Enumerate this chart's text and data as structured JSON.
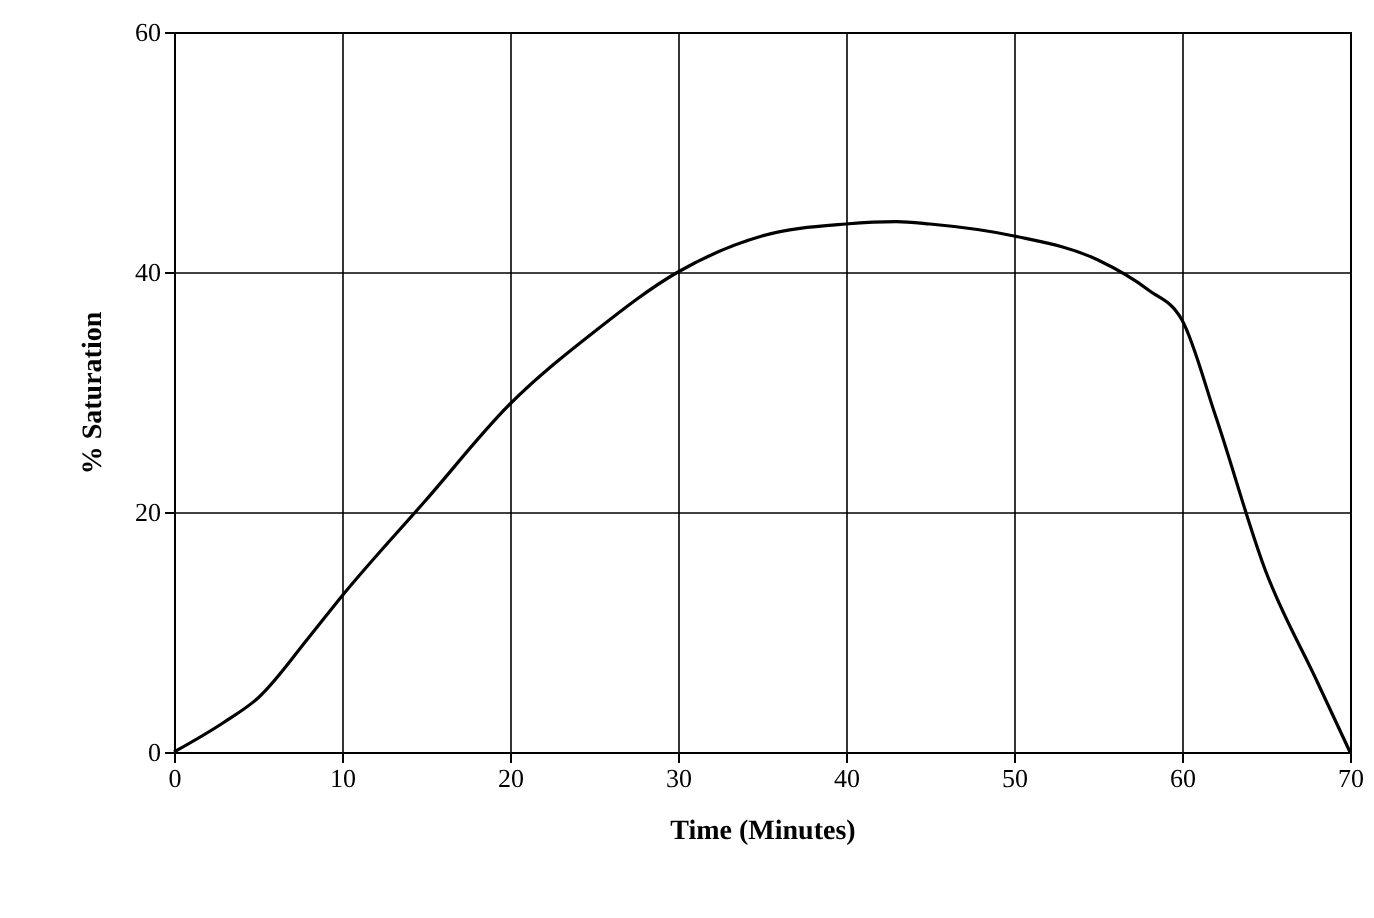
{
  "chart_data": {
    "type": "line",
    "xlabel": "Time (Minutes)",
    "ylabel": "% Saturation",
    "x": [
      0,
      3,
      5,
      8,
      10,
      15,
      20,
      25,
      30,
      35,
      40,
      43,
      45,
      50,
      55,
      58,
      60,
      62,
      65,
      68,
      70
    ],
    "series": [
      {
        "color": "#000000",
        "values": [
          0,
          2.5,
          4.5,
          9.5,
          13,
          21,
          29,
          35,
          40,
          43,
          44,
          44.2,
          44,
          43,
          41,
          38.5,
          36,
          28,
          15,
          6,
          0
        ]
      }
    ],
    "xlim": [
      0,
      70
    ],
    "xticks": [
      0,
      10,
      20,
      30,
      40,
      50,
      60,
      70
    ],
    "ylim": [
      0,
      60
    ],
    "yticks": [
      0,
      20,
      40,
      60
    ],
    "grid": true,
    "marker": "none",
    "line_style": "solid"
  }
}
